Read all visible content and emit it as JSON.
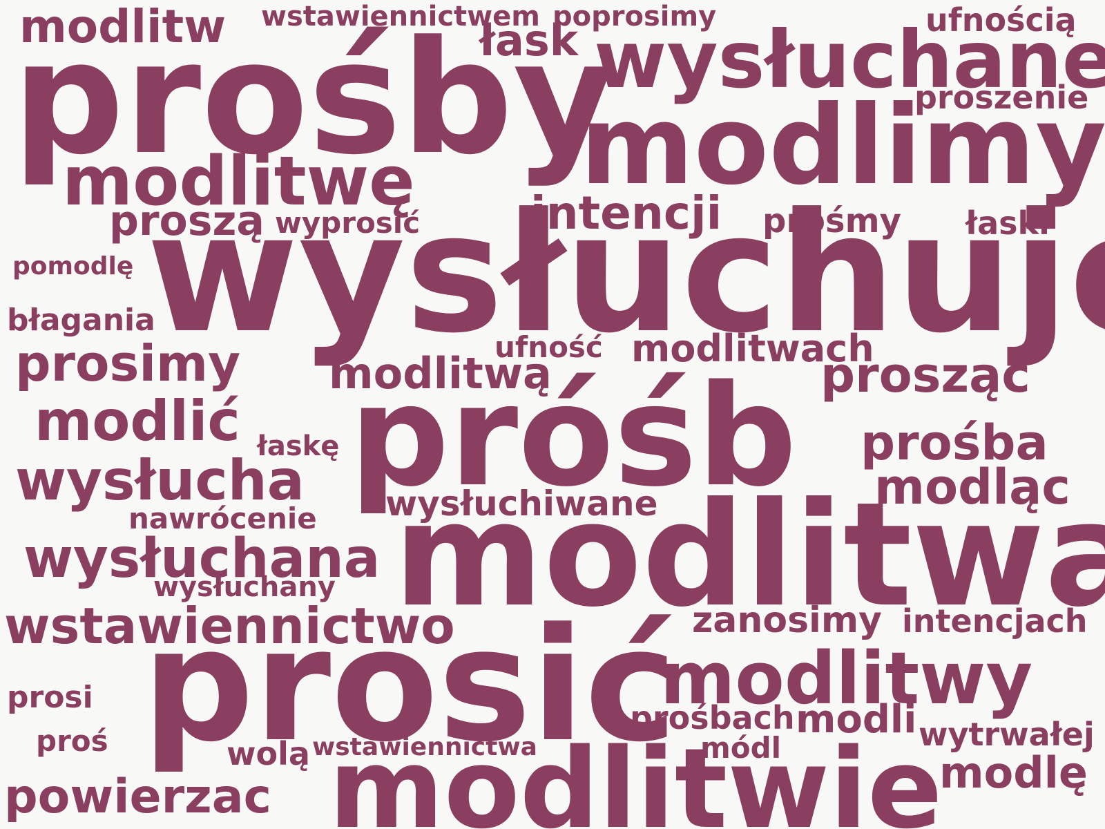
{
  "color": "#8b3f60",
  "background": "#f8f8f6",
  "words": [
    {
      "text": "modlitw"
    },
    {
      "text": "wstawiennictwem"
    },
    {
      "text": "poprosimy"
    },
    {
      "text": "ufnością"
    },
    {
      "text": "łask"
    },
    {
      "text": "prośby"
    },
    {
      "text": "wysłuchane"
    },
    {
      "text": "proszenie"
    },
    {
      "text": "modlimy"
    },
    {
      "text": "modlitwę"
    },
    {
      "text": "intencji"
    },
    {
      "text": "proszą"
    },
    {
      "text": "wyprosić"
    },
    {
      "text": "prośmy"
    },
    {
      "text": "łaski"
    },
    {
      "text": "pomodlę"
    },
    {
      "text": "wysłuchuje"
    },
    {
      "text": "błagania"
    },
    {
      "text": "ufność"
    },
    {
      "text": "modlitwach"
    },
    {
      "text": "prosimy"
    },
    {
      "text": "modlitwą"
    },
    {
      "text": "prosząc"
    },
    {
      "text": "modlić"
    },
    {
      "text": "łaskę"
    },
    {
      "text": "próśb"
    },
    {
      "text": "prośba"
    },
    {
      "text": "wysłucha"
    },
    {
      "text": "modląc"
    },
    {
      "text": "wysłuchiwane"
    },
    {
      "text": "nawrócenie"
    },
    {
      "text": "wysłuchana"
    },
    {
      "text": "modlitwa"
    },
    {
      "text": "wysłuchany"
    },
    {
      "text": "wstawiennictwo"
    },
    {
      "text": "zanosimy"
    },
    {
      "text": "intencjach"
    },
    {
      "text": "prosić"
    },
    {
      "text": "modlitwy"
    },
    {
      "text": "prosi"
    },
    {
      "text": "prośbach"
    },
    {
      "text": "modli"
    },
    {
      "text": "wytrwałej"
    },
    {
      "text": "proś"
    },
    {
      "text": "wolą"
    },
    {
      "text": "wstawiennictwa"
    },
    {
      "text": "módl"
    },
    {
      "text": "modlitwie"
    },
    {
      "text": "modlę"
    },
    {
      "text": "powierzac"
    }
  ]
}
